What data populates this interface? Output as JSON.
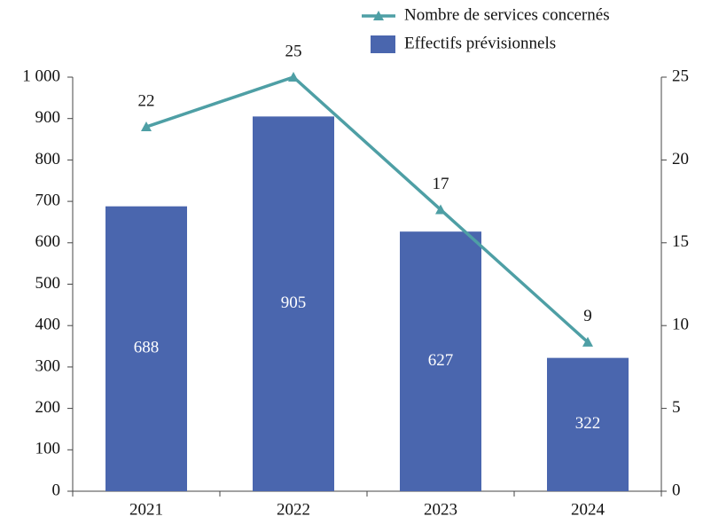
{
  "chart_data": {
    "type": "combo",
    "categories": [
      "2021",
      "2022",
      "2023",
      "2024"
    ],
    "series": [
      {
        "name": "Nombre de services concernés",
        "type": "line",
        "axis": "y2",
        "color": "#4e9fa5",
        "values": [
          22,
          25,
          17,
          9
        ]
      },
      {
        "name": "Effectifs prévisionnels",
        "type": "bar",
        "color": "#4a66ae",
        "values": [
          688,
          905,
          627,
          322
        ]
      }
    ],
    "ylim": [
      0,
      1000
    ],
    "yticks": [
      0,
      100,
      200,
      300,
      400,
      500,
      600,
      700,
      800,
      900,
      {
        "value": 1000,
        "label": "1 000"
      }
    ],
    "y2lim": [
      0,
      25
    ],
    "y2ticks": [
      0,
      5,
      10,
      15,
      20,
      25
    ],
    "legend": "top-right"
  }
}
